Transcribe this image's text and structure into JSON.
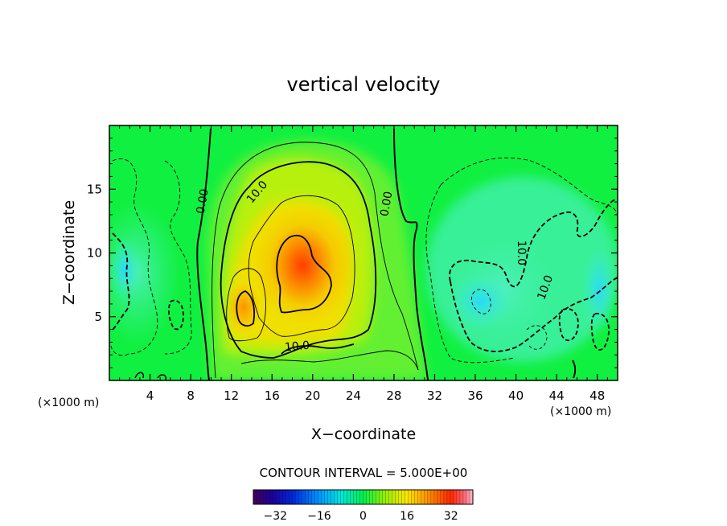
{
  "chart_data": {
    "type": "heatmap",
    "title": "vertical velocity",
    "xlabel": "X−coordinate",
    "ylabel": "Z−coordinate",
    "x_unit_left": "(×1000 m)",
    "x_unit_right": "(×1000 m)",
    "xlim": [
      0,
      50
    ],
    "ylim": [
      0,
      20
    ],
    "x_ticks": [
      4,
      8,
      12,
      16,
      20,
      24,
      28,
      32,
      36,
      40,
      44,
      48
    ],
    "y_ticks": [
      5,
      10,
      15
    ],
    "contour_interval_text": "CONTOUR INTERVAL = 5.000E+00",
    "contour_labels": [
      {
        "text": "0.00",
        "x": 9.5,
        "z": 14.0,
        "angle": -80
      },
      {
        "text": "10.0",
        "x": 14.8,
        "z": 14.6,
        "angle": -50
      },
      {
        "text": "0.00",
        "x": 27.6,
        "z": 13.8,
        "angle": -80
      },
      {
        "text": "10.0",
        "x": 18.5,
        "z": 2.4,
        "angle": -5
      },
      {
        "text": "10.0",
        "x": 40.2,
        "z": 10.0,
        "angle": 90
      },
      {
        "text": "10.0",
        "x": 43.2,
        "z": 7.2,
        "angle": -70
      }
    ],
    "colorbar": {
      "min": -40,
      "max": 40,
      "ticks": [
        -32,
        -16,
        0,
        16,
        32
      ],
      "tick_labels": [
        "−32",
        "−16",
        "0",
        "16",
        "32"
      ]
    },
    "updraft_core": {
      "x_center": 18.5,
      "z_center": 9.0,
      "peak": 32
    },
    "downdraft_core": {
      "x_center": 36.5,
      "z_center": 6.0,
      "peak": -18
    }
  }
}
